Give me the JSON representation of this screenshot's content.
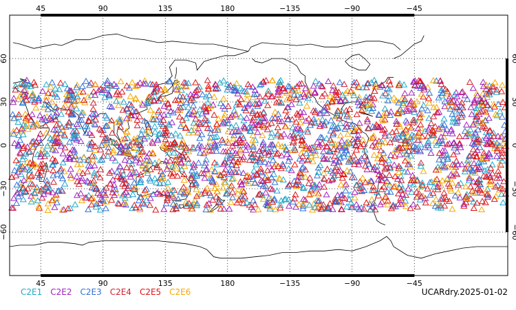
{
  "map": {
    "projection": "equirectangular",
    "central_longitude": 180,
    "lon_ticks": [
      "45",
      "90",
      "135",
      "180",
      "−135",
      "−90",
      "−45"
    ],
    "lat_ticks": [
      "60",
      "30",
      "0",
      "−30",
      "−60"
    ],
    "grid": "dotted"
  },
  "legend": {
    "items": [
      {
        "label": "C2E1",
        "color": "#1fa7c9"
      },
      {
        "label": "C2E2",
        "color": "#a020c0"
      },
      {
        "label": "C2E3",
        "color": "#3070d8"
      },
      {
        "label": "C2E4",
        "color": "#d02030"
      },
      {
        "label": "C2E5",
        "color": "#e01010"
      },
      {
        "label": "C2E6",
        "color": "#f5a800"
      }
    ]
  },
  "footer": {
    "label": "UCARdry.2025-01-02"
  },
  "observations": {
    "marker": "triangle-outline",
    "lat_range": [
      -45,
      45
    ],
    "description_series": [
      "C2E1",
      "C2E2",
      "C2E3",
      "C2E4",
      "C2E5",
      "C2E6"
    ]
  }
}
